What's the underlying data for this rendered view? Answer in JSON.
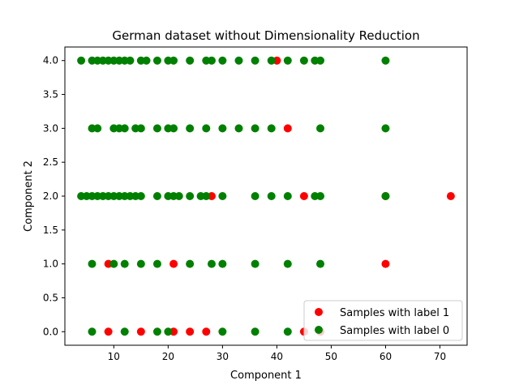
{
  "chart_data": {
    "type": "scatter",
    "title": "German dataset without Dimensionality Reduction",
    "xlabel": "Component 1",
    "ylabel": "Component 2",
    "xlim": [
      1.0,
      75.0
    ],
    "ylim": [
      -0.2,
      4.2
    ],
    "xticks": [
      10,
      20,
      30,
      40,
      50,
      60,
      70
    ],
    "yticks": [
      0.0,
      0.5,
      1.0,
      1.5,
      2.0,
      2.5,
      3.0,
      3.5,
      4.0
    ],
    "grid": false,
    "legend": "lower-right",
    "series": [
      {
        "name": "Samples with label 1",
        "color": "#ff0000",
        "points": [
          [
            40,
            4
          ],
          [
            42,
            3
          ],
          [
            72,
            2
          ],
          [
            28,
            2
          ],
          [
            45,
            2
          ],
          [
            60,
            2
          ],
          [
            9,
            1
          ],
          [
            21,
            1
          ],
          [
            60,
            1
          ],
          [
            9,
            0
          ],
          [
            15,
            0
          ],
          [
            21,
            0
          ],
          [
            24,
            0
          ],
          [
            27,
            0
          ],
          [
            45,
            0
          ],
          [
            48,
            0
          ]
        ]
      },
      {
        "name": "Samples with label 0",
        "color": "#008000",
        "points": [
          [
            4,
            4
          ],
          [
            6,
            4
          ],
          [
            7,
            4
          ],
          [
            8,
            4
          ],
          [
            9,
            4
          ],
          [
            10,
            4
          ],
          [
            11,
            4
          ],
          [
            12,
            4
          ],
          [
            13,
            4
          ],
          [
            15,
            4
          ],
          [
            16,
            4
          ],
          [
            18,
            4
          ],
          [
            20,
            4
          ],
          [
            21,
            4
          ],
          [
            24,
            4
          ],
          [
            27,
            4
          ],
          [
            28,
            4
          ],
          [
            30,
            4
          ],
          [
            33,
            4
          ],
          [
            36,
            4
          ],
          [
            39,
            4
          ],
          [
            42,
            4
          ],
          [
            45,
            4
          ],
          [
            47,
            4
          ],
          [
            48,
            4
          ],
          [
            60,
            4
          ],
          [
            6,
            3
          ],
          [
            7,
            3
          ],
          [
            10,
            3
          ],
          [
            11,
            3
          ],
          [
            12,
            3
          ],
          [
            14,
            3
          ],
          [
            15,
            3
          ],
          [
            18,
            3
          ],
          [
            20,
            3
          ],
          [
            21,
            3
          ],
          [
            24,
            3
          ],
          [
            27,
            3
          ],
          [
            30,
            3
          ],
          [
            33,
            3
          ],
          [
            36,
            3
          ],
          [
            39,
            3
          ],
          [
            48,
            3
          ],
          [
            60,
            3
          ],
          [
            4,
            2
          ],
          [
            5,
            2
          ],
          [
            6,
            2
          ],
          [
            7,
            2
          ],
          [
            8,
            2
          ],
          [
            9,
            2
          ],
          [
            10,
            2
          ],
          [
            11,
            2
          ],
          [
            12,
            2
          ],
          [
            13,
            2
          ],
          [
            14,
            2
          ],
          [
            15,
            2
          ],
          [
            18,
            2
          ],
          [
            20,
            2
          ],
          [
            21,
            2
          ],
          [
            22,
            2
          ],
          [
            24,
            2
          ],
          [
            26,
            2
          ],
          [
            27,
            2
          ],
          [
            30,
            2
          ],
          [
            36,
            2
          ],
          [
            39,
            2
          ],
          [
            42,
            2
          ],
          [
            47,
            2
          ],
          [
            48,
            2
          ],
          [
            60,
            2
          ],
          [
            6,
            1
          ],
          [
            10,
            1
          ],
          [
            12,
            1
          ],
          [
            15,
            1
          ],
          [
            18,
            1
          ],
          [
            24,
            1
          ],
          [
            28,
            1
          ],
          [
            30,
            1
          ],
          [
            36,
            1
          ],
          [
            42,
            1
          ],
          [
            48,
            1
          ],
          [
            6,
            0
          ],
          [
            12,
            0
          ],
          [
            18,
            0
          ],
          [
            20,
            0
          ],
          [
            30,
            0
          ],
          [
            36,
            0
          ],
          [
            42,
            0
          ]
        ]
      }
    ]
  }
}
